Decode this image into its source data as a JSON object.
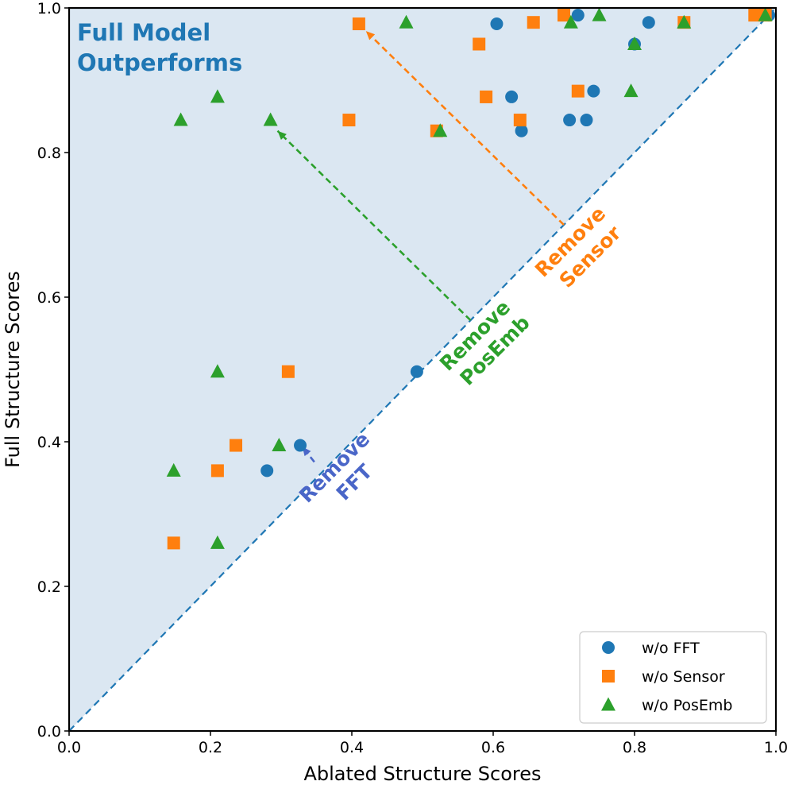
{
  "chart_data": {
    "type": "scatter",
    "xlabel": "Ablated Structure Scores",
    "ylabel": "Full Structure Scores",
    "xlim": [
      0.0,
      1.0
    ],
    "ylim": [
      0.0,
      1.0
    ],
    "x_ticks": [
      "0.0",
      "0.2",
      "0.4",
      "0.6",
      "0.8",
      "1.0"
    ],
    "y_ticks": [
      "0.0",
      "0.2",
      "0.4",
      "0.6",
      "0.8",
      "1.0"
    ],
    "region_label": [
      "Full Model",
      "Outperforms"
    ],
    "colors": {
      "fft": "#1f77b4",
      "sensor": "#ff7f0e",
      "posemb": "#2ca02c",
      "shade": "#dbe7f2",
      "fft_annot": "#4a66c8"
    },
    "series": [
      {
        "name": "w/o FFT",
        "marker": "circle",
        "points": [
          [
            0.605,
            0.978
          ],
          [
            0.72,
            0.99
          ],
          [
            0.82,
            0.98
          ],
          [
            0.8,
            0.95
          ],
          [
            0.626,
            0.877
          ],
          [
            0.742,
            0.885
          ],
          [
            0.708,
            0.845
          ],
          [
            0.732,
            0.845
          ],
          [
            0.64,
            0.83
          ],
          [
            0.492,
            0.497
          ],
          [
            0.327,
            0.395
          ],
          [
            0.28,
            0.36
          ],
          [
            0.99,
            0.99
          ]
        ]
      },
      {
        "name": "w/o Sensor",
        "marker": "square",
        "points": [
          [
            0.41,
            0.978
          ],
          [
            0.7,
            0.99
          ],
          [
            0.657,
            0.98
          ],
          [
            0.58,
            0.95
          ],
          [
            0.87,
            0.98
          ],
          [
            0.97,
            0.99
          ],
          [
            0.59,
            0.877
          ],
          [
            0.72,
            0.885
          ],
          [
            0.396,
            0.845
          ],
          [
            0.638,
            0.845
          ],
          [
            0.52,
            0.83
          ],
          [
            0.31,
            0.497
          ],
          [
            0.236,
            0.395
          ],
          [
            0.21,
            0.36
          ],
          [
            0.148,
            0.26
          ],
          [
            0.985,
            0.99
          ]
        ]
      },
      {
        "name": "w/o PosEmb",
        "marker": "triangle",
        "points": [
          [
            0.477,
            0.98
          ],
          [
            0.75,
            0.99
          ],
          [
            0.71,
            0.98
          ],
          [
            0.8,
            0.95
          ],
          [
            0.87,
            0.98
          ],
          [
            0.985,
            0.99
          ],
          [
            0.21,
            0.877
          ],
          [
            0.158,
            0.845
          ],
          [
            0.285,
            0.845
          ],
          [
            0.795,
            0.885
          ],
          [
            0.525,
            0.83
          ],
          [
            0.21,
            0.497
          ],
          [
            0.297,
            0.395
          ],
          [
            0.148,
            0.36
          ],
          [
            0.21,
            0.26
          ]
        ]
      }
    ],
    "annotations": [
      {
        "key": "fft",
        "lines": [
          "Remove",
          "FFT"
        ],
        "from": [
          0.347,
          0.372
        ],
        "to": [
          0.33,
          0.393
        ]
      },
      {
        "key": "posemb",
        "lines": [
          "Remove",
          "PosEmb"
        ],
        "from": [
          0.568,
          0.568
        ],
        "to": [
          0.295,
          0.83
        ]
      },
      {
        "key": "sensor",
        "lines": [
          "Remove",
          "Sensor"
        ],
        "from": [
          0.7,
          0.7
        ],
        "to": [
          0.42,
          0.968
        ]
      }
    ]
  }
}
